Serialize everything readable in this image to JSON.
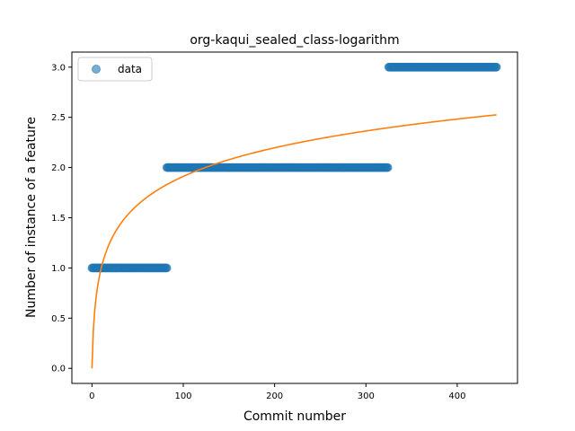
{
  "chart_data": {
    "type": "scatter",
    "title": "org-kaqui_sealed_class-logarithm",
    "xlabel": "Commit number",
    "ylabel": "Number of instance of a feature",
    "xlim": [
      -22,
      466
    ],
    "ylim": [
      -0.15,
      3.15
    ],
    "xticks": [
      0,
      100,
      200,
      300,
      400
    ],
    "yticks": [
      0.0,
      0.5,
      1.0,
      1.5,
      2.0,
      2.5,
      3.0
    ],
    "xtick_labels": [
      "0",
      "100",
      "200",
      "300",
      "400"
    ],
    "ytick_labels": [
      "0.0",
      "0.5",
      "1.0",
      "1.5",
      "2.0",
      "2.5",
      "3.0"
    ],
    "grid": false,
    "legend": {
      "position": "top-left",
      "entries": [
        "data"
      ]
    },
    "series": [
      {
        "name": "data",
        "kind": "scatter",
        "color": "#1f77b4",
        "segments": [
          {
            "x_start": 0,
            "x_end": 82,
            "y": 1
          },
          {
            "x_start": 82,
            "x_end": 324,
            "y": 2
          },
          {
            "x_start": 325,
            "x_end": 443,
            "y": 3
          }
        ]
      },
      {
        "kind": "line",
        "color": "#ff7f0e",
        "fit": {
          "model": "logarithm",
          "a": 0.4142,
          "b": 1,
          "x_start": 0,
          "x_end": 443
        }
      }
    ]
  }
}
